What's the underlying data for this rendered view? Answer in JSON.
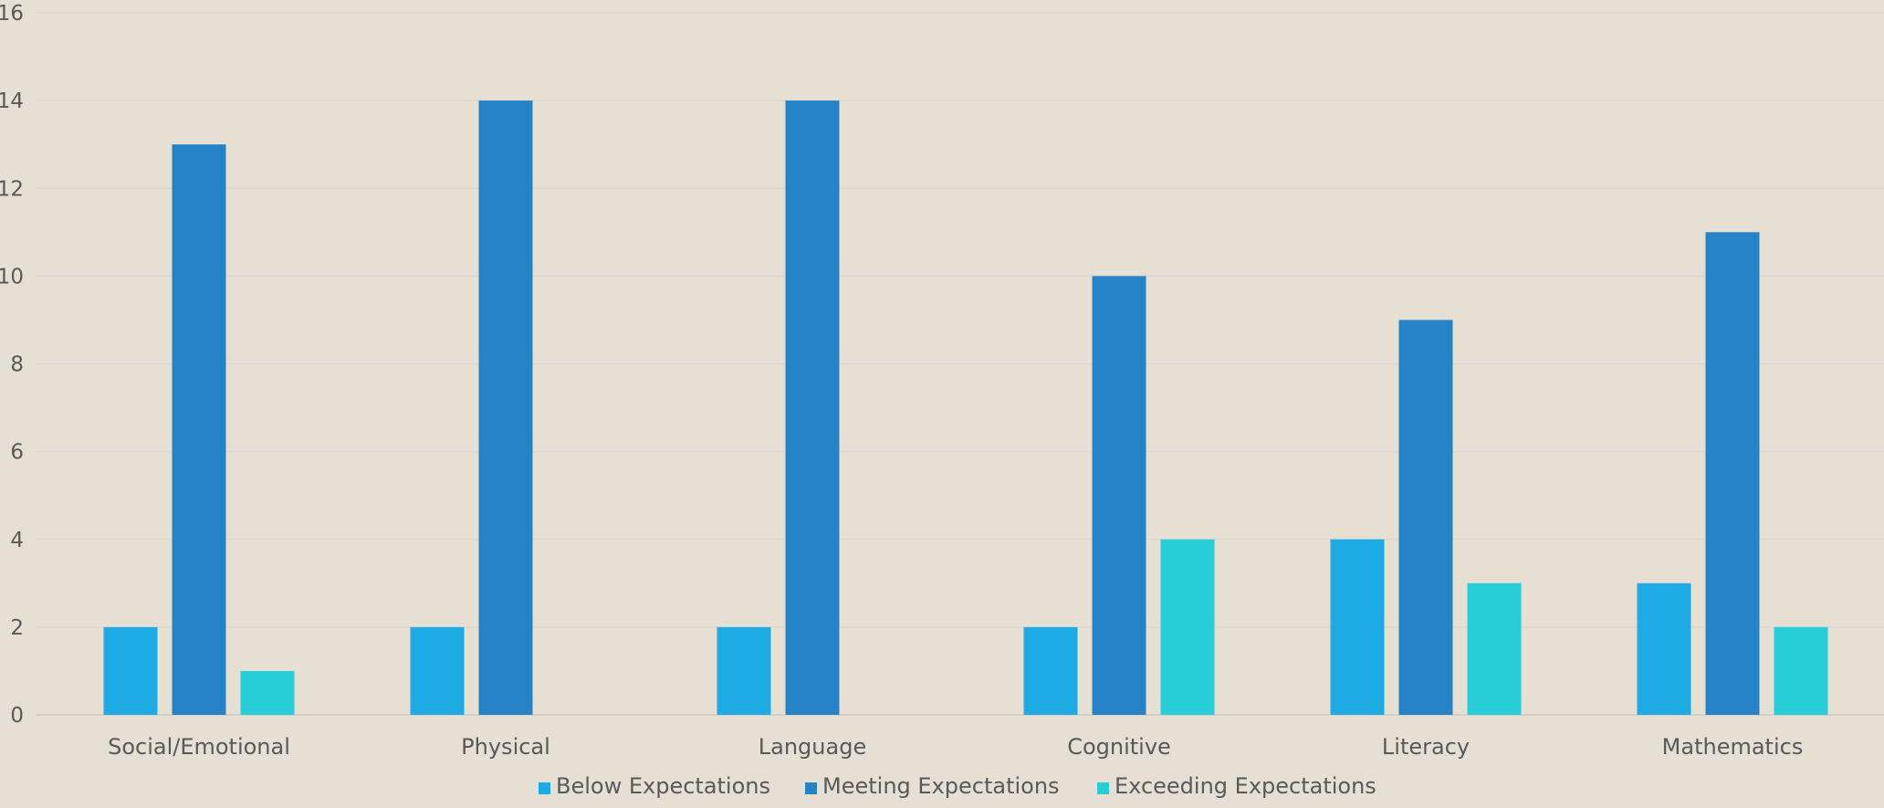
{
  "chart_data": {
    "type": "bar",
    "categories": [
      "Social/Emotional",
      "Physical",
      "Language",
      "Cognitive",
      "Literacy",
      "Mathematics"
    ],
    "series": [
      {
        "name": "Below Expectations",
        "color": "#1eaae2",
        "values": [
          2,
          2,
          2,
          2,
          4,
          3
        ]
      },
      {
        "name": "Meeting Expectations",
        "color": "#2683c6",
        "values": [
          13,
          14,
          14,
          10,
          9,
          11
        ]
      },
      {
        "name": "Exceeding Expectations",
        "color": "#27ced7",
        "values": [
          1,
          0,
          0,
          4,
          3,
          2
        ]
      }
    ],
    "ylim": [
      0,
      16
    ],
    "yticks": [
      0,
      2,
      4,
      6,
      8,
      10,
      12,
      14,
      16
    ],
    "grid": true,
    "legend_position": "bottom"
  }
}
